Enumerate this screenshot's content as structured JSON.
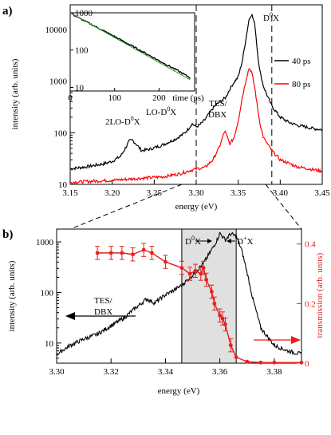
{
  "chart_data": [
    {
      "panel": "a)",
      "type": "line",
      "xlabel": "energy (eV)",
      "ylabel": "intensity (arb. units)",
      "xlim": [
        3.15,
        3.45
      ],
      "ylim": [
        10,
        30000
      ],
      "yscale": "log",
      "xticks": [
        3.15,
        3.2,
        3.25,
        3.3,
        3.35,
        3.4,
        3.45
      ],
      "yticks": [
        10,
        100,
        1000,
        10000
      ],
      "dashed_lines_x": [
        3.3,
        3.39
      ],
      "legend_position": "right",
      "series": [
        {
          "name": "40 ps",
          "color": "#000000",
          "x": [
            3.15,
            3.17,
            3.19,
            3.2,
            3.21,
            3.215,
            3.22,
            3.224,
            3.228,
            3.235,
            3.245,
            3.26,
            3.275,
            3.285,
            3.29,
            3.295,
            3.3,
            3.305,
            3.31,
            3.315,
            3.32,
            3.325,
            3.33,
            3.335,
            3.34,
            3.345,
            3.35,
            3.355,
            3.36,
            3.363,
            3.366,
            3.37,
            3.373,
            3.376,
            3.38,
            3.385,
            3.39,
            3.4,
            3.41,
            3.42,
            3.43,
            3.44,
            3.45
          ],
          "y": [
            20,
            22,
            25,
            28,
            35,
            48,
            68,
            72,
            62,
            45,
            48,
            58,
            75,
            95,
            115,
            150,
            130,
            145,
            175,
            230,
            300,
            360,
            420,
            480,
            700,
            950,
            1200,
            2500,
            8000,
            16000,
            20000,
            12000,
            3500,
            1500,
            800,
            500,
            330,
            200,
            160,
            140,
            130,
            120,
            115
          ]
        },
        {
          "name": "80 ps",
          "color": "#ff0000",
          "x": [
            3.15,
            3.2,
            3.23,
            3.26,
            3.28,
            3.29,
            3.3,
            3.31,
            3.32,
            3.328,
            3.334,
            3.34,
            3.345,
            3.35,
            3.355,
            3.36,
            3.363,
            3.366,
            3.37,
            3.373,
            3.376,
            3.38,
            3.39,
            3.4,
            3.42,
            3.45
          ],
          "y": [
            11,
            12,
            13,
            14,
            16,
            18,
            20,
            21,
            30,
            55,
            110,
            60,
            80,
            170,
            500,
            1200,
            1800,
            1500,
            700,
            300,
            150,
            80,
            45,
            30,
            22,
            18
          ]
        }
      ],
      "annotations": [
        "2LO-D0X",
        "LO-D0X",
        "TES/",
        "DBX",
        "D0X"
      ],
      "inset": {
        "type": "line",
        "xlabel": "time (ps)",
        "xlim": [
          0,
          280
        ],
        "ylim": [
          8,
          1000
        ],
        "yscale": "log",
        "xticks": [
          0,
          100,
          200
        ],
        "yticks": [
          10,
          100,
          1000
        ],
        "series": [
          {
            "name": "decay",
            "color": "#000000",
            "x": [
              0,
              20,
              50,
              100,
              150,
              200,
              240,
              270
            ],
            "y": [
              1000,
              720,
              470,
              230,
              110,
              52,
              29,
              18
            ]
          },
          {
            "name": "fit",
            "color": "#2ca02c",
            "x": [
              0,
              270
            ],
            "y": [
              1000,
              16
            ]
          }
        ]
      }
    },
    {
      "panel": "b)",
      "type": "line",
      "xlabel": "energy (eV)",
      "ylabel": "intensity (arb. units)",
      "y2label": "transmission (arb. units)",
      "xlim": [
        3.3,
        3.39
      ],
      "ylim": [
        4,
        1800
      ],
      "yscale": "log",
      "y2lim": [
        0,
        0.45
      ],
      "xticks": [
        3.3,
        3.32,
        3.34,
        3.36,
        3.38
      ],
      "yticks": [
        10,
        100,
        1000
      ],
      "y2ticks": [
        0,
        0.2,
        0.4
      ],
      "shaded_region_x": [
        3.346,
        3.366
      ],
      "annotations": [
        "TES/",
        "DBX",
        "D0X",
        "D+X"
      ],
      "series": [
        {
          "name": "intensity",
          "color": "#000000",
          "axis": "left",
          "x": [
            3.3,
            3.305,
            3.31,
            3.315,
            3.32,
            3.325,
            3.328,
            3.331,
            3.333,
            3.336,
            3.34,
            3.343,
            3.346,
            3.35,
            3.354,
            3.357,
            3.359,
            3.36,
            3.362,
            3.364,
            3.366,
            3.368,
            3.37,
            3.372,
            3.375,
            3.38,
            3.385,
            3.39
          ],
          "y": [
            6,
            9,
            12,
            15,
            22,
            32,
            45,
            60,
            75,
            62,
            90,
            110,
            140,
            220,
            380,
            700,
            1100,
            1500,
            1100,
            1450,
            1300,
            700,
            250,
            80,
            20,
            9,
            7,
            6
          ]
        },
        {
          "name": "transmission",
          "color": "#e8201c",
          "axis": "right",
          "x": [
            3.315,
            3.32,
            3.324,
            3.328,
            3.332,
            3.335,
            3.34,
            3.346,
            3.349,
            3.351,
            3.353,
            3.354,
            3.355,
            3.357,
            3.358,
            3.36,
            3.361,
            3.362,
            3.364,
            3.366,
            3.37,
            3.375,
            3.38,
            3.39
          ],
          "y": [
            0.37,
            0.37,
            0.37,
            0.365,
            0.38,
            0.37,
            0.34,
            0.32,
            0.3,
            0.31,
            0.3,
            0.32,
            0.28,
            0.24,
            0.2,
            0.16,
            0.15,
            0.13,
            0.06,
            0.02,
            0.005,
            0.002,
            0.002,
            0.002
          ]
        }
      ]
    }
  ]
}
